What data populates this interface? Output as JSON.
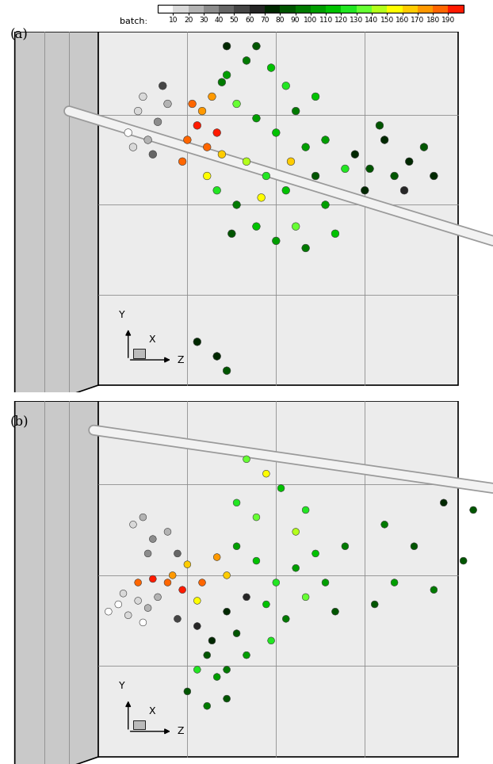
{
  "colorbar": {
    "label": "batch:",
    "range": [
      0,
      200
    ],
    "ticks": [
      10,
      20,
      30,
      40,
      50,
      60,
      70,
      80,
      90,
      100,
      110,
      120,
      130,
      140,
      150,
      160,
      170,
      180,
      190
    ],
    "colors": [
      "#ffffff",
      "#d9d9d9",
      "#b3b3b3",
      "#8c8c8c",
      "#666666",
      "#454545",
      "#262626",
      "#002800",
      "#005500",
      "#007a00",
      "#009e00",
      "#00c200",
      "#22e622",
      "#66ff33",
      "#b3ff1a",
      "#ffff00",
      "#ffcc00",
      "#ff9900",
      "#ff6600",
      "#ff1a00"
    ]
  },
  "chart_data": [
    {
      "type": "scatter",
      "title": "(a)",
      "tick_labels": false,
      "axis_labels": {
        "x": "X",
        "y": "Y",
        "z": "Z"
      },
      "xlim": [
        0,
        100
      ],
      "ylim": [
        0,
        100
      ],
      "x": [
        26,
        28,
        30,
        29,
        32,
        31,
        34,
        27,
        33,
        38,
        40,
        42,
        41,
        44,
        39,
        43,
        45,
        37,
        42,
        46,
        50,
        55,
        58,
        48,
        52,
        56,
        60,
        62,
        50,
        54,
        58,
        64,
        66,
        48,
        52,
        56,
        60,
        44,
        47,
        62,
        68,
        66,
        70,
        64,
        45,
        53,
        59,
        72,
        75,
        78,
        80,
        83,
        86,
        74,
        82,
        88,
        77,
        40,
        44,
        46,
        52,
        46
      ],
      "y": [
        72,
        78,
        70,
        82,
        75,
        66,
        80,
        68,
        85,
        70,
        74,
        68,
        78,
        72,
        80,
        82,
        66,
        64,
        60,
        88,
        92,
        90,
        85,
        80,
        76,
        72,
        78,
        68,
        64,
        60,
        56,
        60,
        52,
        52,
        46,
        42,
        46,
        56,
        44,
        40,
        44,
        70,
        62,
        82,
        86,
        54,
        64,
        66,
        62,
        70,
        60,
        64,
        68,
        56,
        56,
        60,
        74,
        14,
        10,
        6,
        96,
        96
      ],
      "batch": [
        5,
        15,
        25,
        15,
        35,
        45,
        25,
        15,
        55,
        185,
        195,
        185,
        175,
        195,
        185,
        175,
        165,
        185,
        155,
        105,
        95,
        115,
        125,
        135,
        105,
        115,
        95,
        105,
        145,
        125,
        115,
        85,
        105,
        95,
        115,
        105,
        135,
        125,
        85,
        95,
        115,
        105,
        125,
        115,
        95,
        155,
        165,
        75,
        85,
        75,
        85,
        75,
        85,
        75,
        65,
        75,
        85,
        75,
        75,
        85,
        85,
        75
      ]
    },
    {
      "type": "scatter",
      "title": "(b)",
      "tick_labels": false,
      "axis_labels": {
        "x": "X",
        "y": "Y",
        "z": "Z"
      },
      "xlim": [
        0,
        100
      ],
      "ylim": [
        0,
        100
      ],
      "x": [
        22,
        24,
        26,
        28,
        30,
        32,
        25,
        29,
        28,
        31,
        34,
        27,
        29,
        31,
        34,
        36,
        30,
        35,
        38,
        41,
        44,
        40,
        46,
        37,
        36,
        40,
        43,
        46,
        48,
        50,
        42,
        48,
        52,
        56,
        60,
        54,
        58,
        62,
        50,
        55,
        64,
        66,
        46,
        60,
        52,
        48,
        57,
        54,
        50,
        62,
        70,
        68,
        38,
        42,
        44,
        40,
        46,
        78,
        84,
        90,
        96,
        80,
        88,
        94,
        76
      ],
      "y": [
        42,
        44,
        41,
        45,
        43,
        46,
        47,
        39,
        50,
        51,
        50,
        66,
        68,
        62,
        64,
        58,
        58,
        52,
        55,
        50,
        57,
        45,
        52,
        48,
        40,
        38,
        34,
        42,
        36,
        46,
        30,
        60,
        56,
        50,
        54,
        44,
        40,
        46,
        30,
        34,
        58,
        50,
        26,
        64,
        68,
        72,
        76,
        80,
        84,
        70,
        60,
        42,
        20,
        16,
        24,
        26,
        18,
        66,
        60,
        72,
        70,
        50,
        48,
        56,
        44
      ],
      "batch": [
        5,
        5,
        15,
        15,
        25,
        25,
        15,
        5,
        185,
        195,
        185,
        15,
        25,
        35,
        25,
        45,
        35,
        175,
        165,
        185,
        175,
        155,
        165,
        195,
        55,
        65,
        75,
        75,
        85,
        65,
        85,
        105,
        115,
        125,
        105,
        115,
        95,
        135,
        105,
        125,
        115,
        105,
        95,
        145,
        135,
        125,
        115,
        155,
        135,
        125,
        95,
        85,
        85,
        95,
        105,
        125,
        85,
        95,
        85,
        75,
        85,
        105,
        95,
        85,
        85
      ]
    }
  ]
}
